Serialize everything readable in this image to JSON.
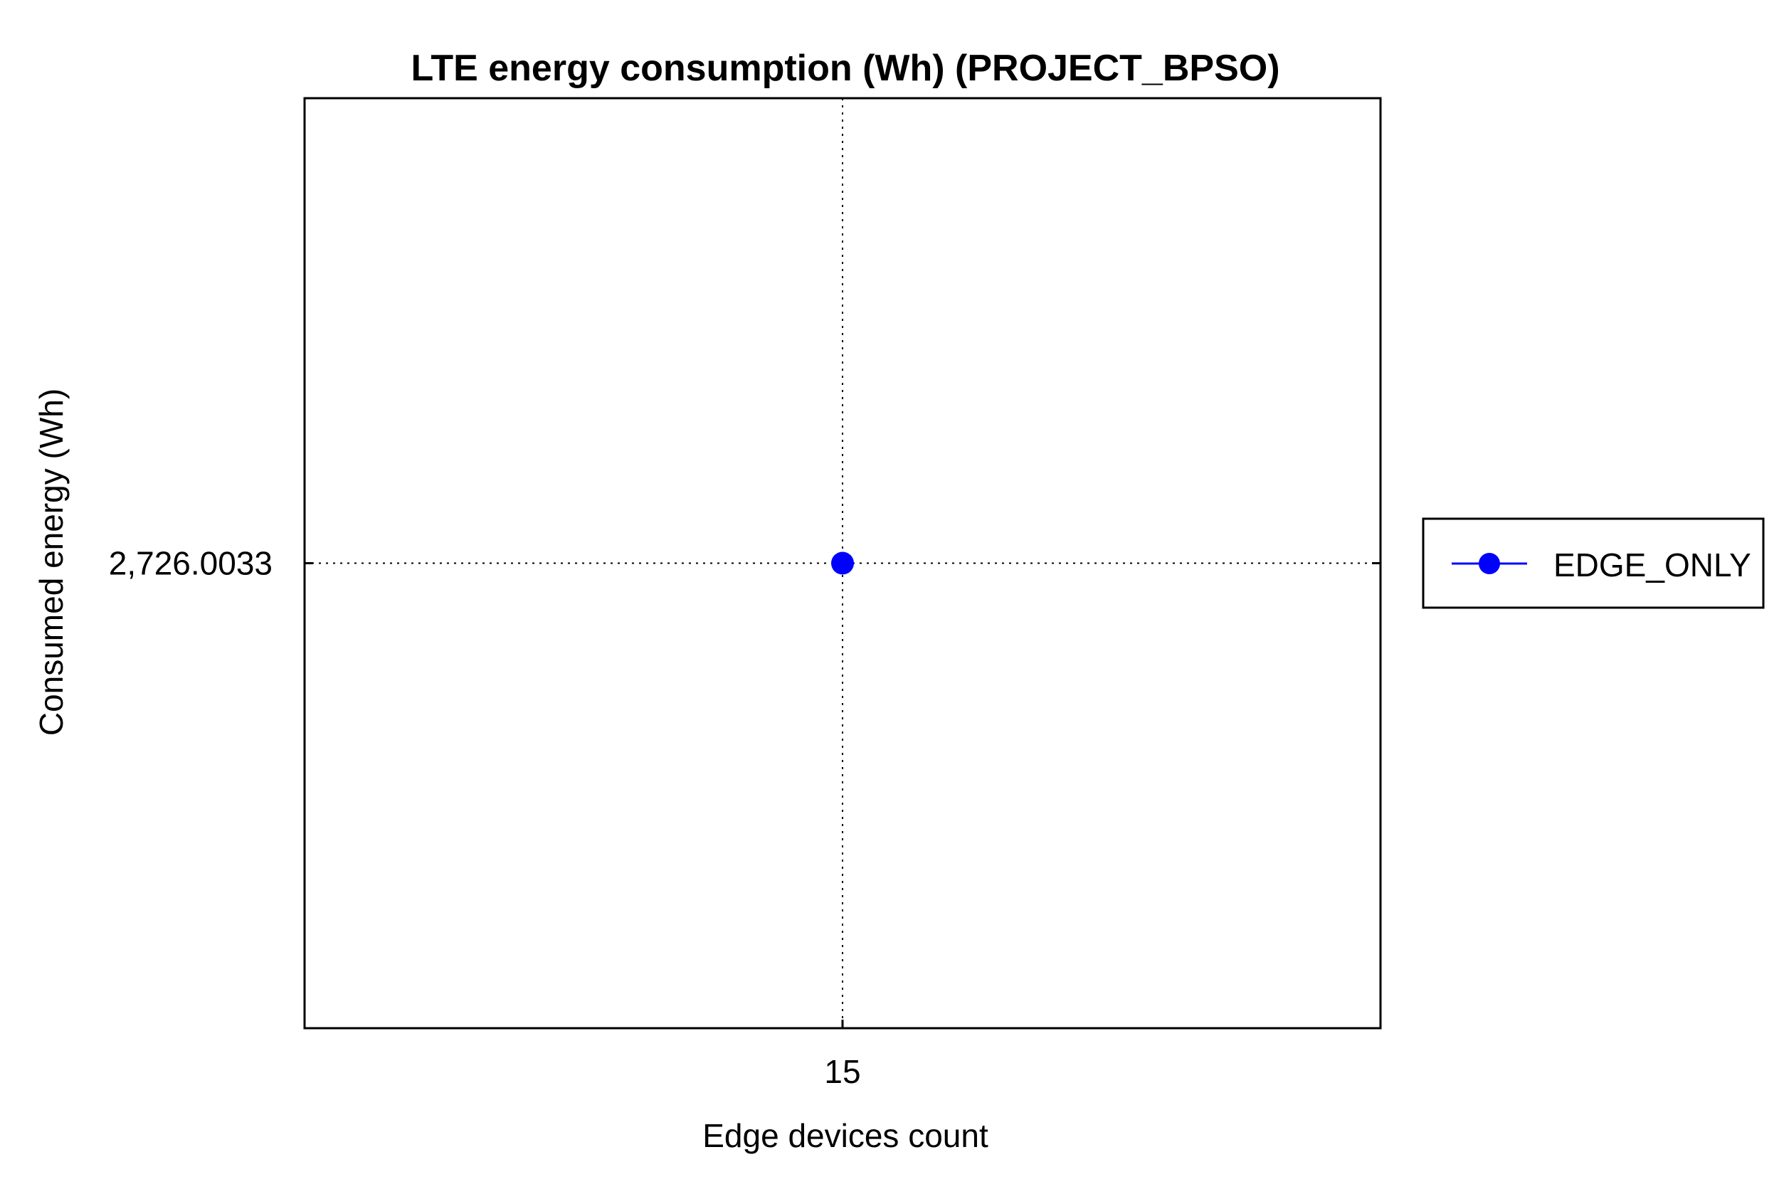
{
  "chart_data": {
    "type": "line",
    "title": "LTE energy consumption (Wh) (PROJECT_BPSO)",
    "xlabel": "Edge devices count",
    "ylabel": "Consumed energy (Wh)",
    "x_ticks": [
      "15"
    ],
    "y_ticks": [
      "2,726.0033"
    ],
    "grid": true,
    "grid_style": "dotted",
    "legend_position": "right",
    "series": [
      {
        "name": "EDGE_ONLY",
        "color": "#0000ff",
        "marker": "circle",
        "x": [
          15
        ],
        "y": [
          2726.0033
        ]
      }
    ]
  }
}
